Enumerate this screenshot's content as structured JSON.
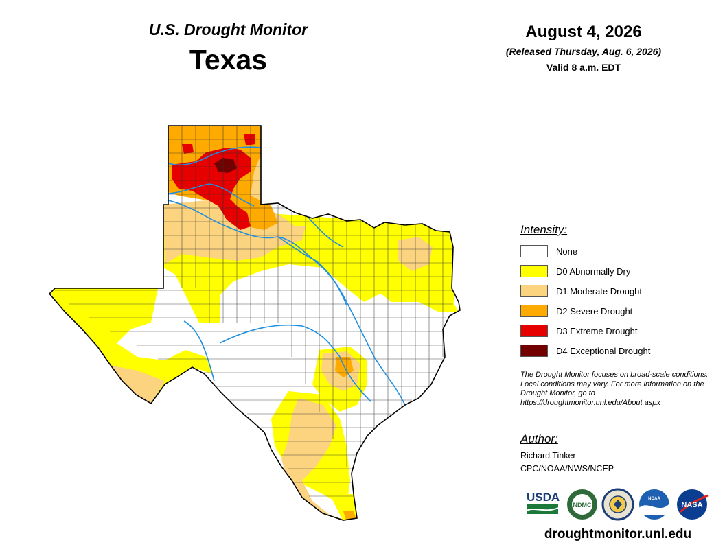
{
  "header": {
    "series_title": "U.S. Drought Monitor",
    "region": "Texas",
    "date": "August 4, 2026",
    "released": "(Released Thursday, Aug. 6, 2026)",
    "valid": "Valid 8 a.m. EDT"
  },
  "legend": {
    "title": "Intensity:",
    "items": [
      {
        "label": "None",
        "color": "#ffffff"
      },
      {
        "label": "D0 Abnormally Dry",
        "color": "#ffff00"
      },
      {
        "label": "D1 Moderate Drought",
        "color": "#fcd37f"
      },
      {
        "label": "D2 Severe Drought",
        "color": "#ffaa00"
      },
      {
        "label": "D3 Extreme Drought",
        "color": "#e60000"
      },
      {
        "label": "D4 Exceptional Drought",
        "color": "#730000"
      }
    ]
  },
  "note": "The Drought Monitor focuses on broad-scale conditions. Local conditions may vary. For more information on the Drought Monitor, go to https://droughtmonitor.unl.edu/About.aspx",
  "author": {
    "title": "Author:",
    "name": "Richard Tinker",
    "org": "CPC/NOAA/NWS/NCEP"
  },
  "logos": {
    "usda": "USDA",
    "ndmc": "NDMC",
    "noaa": "NOAA",
    "nasa": "NASA"
  },
  "website": "droughtmonitor.unl.edu",
  "colors": {
    "river": "#1e8fe0",
    "county_lines": "#333333",
    "border": "#000000"
  }
}
